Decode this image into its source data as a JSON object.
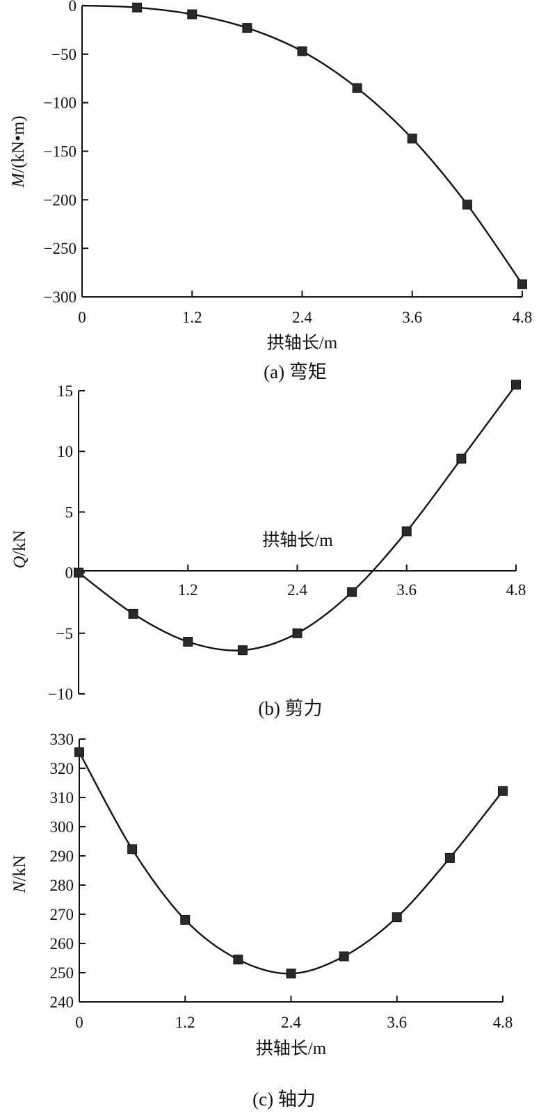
{
  "chart_data": [
    {
      "id": "a",
      "type": "line",
      "caption": "(a) 弯矩",
      "xlabel": "拱轴长/m",
      "ylabel_italic": "M",
      "ylabel_rest": "/(kN•m)",
      "xlim": [
        0,
        4.8
      ],
      "ylim": [
        -300,
        0
      ],
      "xticks": [
        "0",
        "1.2",
        "2.4",
        "3.6",
        "4.8"
      ],
      "yticks": [
        "0",
        "−50",
        "−100",
        "−150",
        "−200",
        "−250",
        "−300"
      ],
      "x": [
        0.6,
        1.2,
        1.8,
        2.4,
        3.0,
        3.6,
        4.2,
        4.8
      ],
      "y": [
        -2,
        -9,
        -23,
        -47,
        -85,
        -137,
        -205,
        -287
      ],
      "curve": [
        [
          0,
          0
        ],
        [
          0.6,
          -2
        ],
        [
          1.2,
          -9
        ],
        [
          1.8,
          -23
        ],
        [
          2.4,
          -47
        ],
        [
          3.0,
          -85
        ],
        [
          3.6,
          -137
        ],
        [
          4.2,
          -205
        ],
        [
          4.8,
          -287
        ]
      ]
    },
    {
      "id": "b",
      "type": "line",
      "caption": "(b) 剪力",
      "xlabel": "拱轴长/m",
      "ylabel_italic": "Q",
      "ylabel_rest": "/kN",
      "xlim": [
        0,
        4.8
      ],
      "ylim": [
        -10,
        15
      ],
      "xticks": [
        "1.2",
        "2.4",
        "3.6",
        "4.8"
      ],
      "yticks": [
        "15",
        "10",
        "5",
        "0",
        "−5",
        "−10"
      ],
      "x": [
        0,
        0.6,
        1.2,
        1.8,
        2.4,
        3.0,
        3.6,
        4.2,
        4.8
      ],
      "y": [
        0,
        -3.4,
        -5.7,
        -6.4,
        -5.0,
        -1.6,
        3.4,
        9.4,
        15.5
      ],
      "curve": [
        [
          0,
          0
        ],
        [
          0.6,
          -3.4
        ],
        [
          1.2,
          -5.7
        ],
        [
          1.8,
          -6.4
        ],
        [
          2.4,
          -5.0
        ],
        [
          3.0,
          -1.6
        ],
        [
          3.6,
          3.4
        ],
        [
          4.2,
          9.4
        ],
        [
          4.8,
          15.5
        ]
      ]
    },
    {
      "id": "c",
      "type": "line",
      "caption": "(c) 轴力",
      "xlabel": "拱轴长/m",
      "ylabel_italic": "N",
      "ylabel_rest": "/kN",
      "xlim": [
        0,
        4.8
      ],
      "ylim": [
        240,
        330
      ],
      "xticks": [
        "0",
        "1.2",
        "2.4",
        "3.6",
        "4.8"
      ],
      "yticks": [
        "330",
        "320",
        "310",
        "300",
        "290",
        "280",
        "270",
        "260",
        "250",
        "240"
      ],
      "x": [
        0,
        0.6,
        1.2,
        1.8,
        2.4,
        3.0,
        3.6,
        4.2,
        4.8
      ],
      "y": [
        325.5,
        292.3,
        268.1,
        254.5,
        249.7,
        255.6,
        269.0,
        289.3,
        312.2
      ],
      "curve": [
        [
          0,
          325.5
        ],
        [
          0.6,
          292.3
        ],
        [
          1.2,
          268.1
        ],
        [
          1.8,
          254.5
        ],
        [
          2.4,
          249.7
        ],
        [
          3.0,
          255.6
        ],
        [
          3.6,
          269.0
        ],
        [
          4.2,
          289.3
        ],
        [
          4.8,
          312.2
        ]
      ]
    }
  ]
}
